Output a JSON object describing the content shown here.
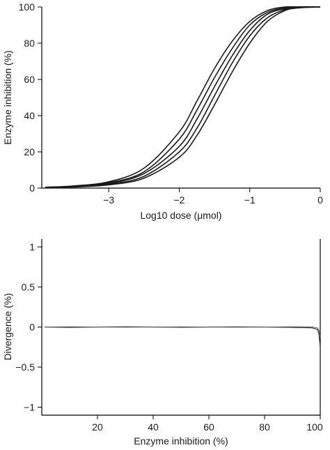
{
  "chart_data": [
    {
      "type": "line",
      "xlabel": "Log10 dose (μmol)",
      "ylabel": "Enzyme inhibition (%)",
      "xlim": [
        -3.95,
        0
      ],
      "ylim": [
        0,
        100
      ],
      "xticks": [
        -3,
        -2,
        -1,
        0
      ],
      "yticks": [
        0,
        20,
        40,
        60,
        80,
        100
      ],
      "grid": false,
      "x": [
        -3.9,
        -3.5,
        -3.0,
        -2.5,
        -2.0,
        -1.75,
        -1.5,
        -1.25,
        -1.0,
        -0.75,
        -0.5,
        -0.3,
        0
      ],
      "series": [
        {
          "values": [
            0.5,
            1.2,
            3.5,
            11,
            31,
            48,
            66,
            81,
            92,
            98,
            100,
            100,
            100
          ]
        },
        {
          "values": [
            0.4,
            1.0,
            3.0,
            9,
            27,
            43,
            61,
            77,
            90,
            97,
            99.5,
            100,
            100
          ]
        },
        {
          "values": [
            0.3,
            0.9,
            2.6,
            8,
            23,
            38,
            56,
            73,
            87,
            96,
            99,
            100,
            100
          ]
        },
        {
          "values": [
            0.3,
            0.8,
            2.2,
            6.5,
            20,
            33,
            51,
            69,
            84,
            94,
            98.5,
            100,
            100
          ]
        },
        {
          "values": [
            0.2,
            0.6,
            1.8,
            5.5,
            17,
            29,
            46,
            64,
            80,
            92,
            98,
            99.5,
            100
          ]
        }
      ]
    },
    {
      "type": "line",
      "xlabel": "Enzyme inhibition (%)",
      "ylabel": "Divergence (%)",
      "xlim": [
        0,
        100
      ],
      "ylim": [
        -1.1,
        1.1
      ],
      "xticks": [
        20,
        40,
        60,
        80,
        100
      ],
      "yticks": [
        -1,
        -0.5,
        0,
        0.5,
        1
      ],
      "ytick_labels": [
        "−1",
        "−0.5",
        "0",
        "0.5",
        "1"
      ],
      "grid": false,
      "x": [
        1,
        10,
        20,
        30,
        40,
        50,
        60,
        70,
        80,
        90,
        97,
        99,
        99.5,
        100
      ],
      "series": [
        {
          "values": [
            0,
            -0.005,
            0,
            0.003,
            0,
            -0.003,
            0,
            0.002,
            0,
            -0.005,
            -0.01,
            -0.03,
            -0.08,
            -0.25
          ]
        },
        {
          "values": [
            0,
            0.003,
            0,
            -0.002,
            0,
            0.002,
            0,
            -0.002,
            0,
            0.003,
            0.002,
            -0.01,
            -0.04,
            -0.12
          ]
        }
      ]
    }
  ],
  "top_chart_labels": {
    "xticks_text": [
      "−3",
      "−2",
      "−1",
      "0"
    ],
    "yticks_text": [
      "0",
      "20",
      "40",
      "60",
      "80",
      "100"
    ]
  },
  "bottom_chart_labels": {
    "xticks_text": [
      "20",
      "40",
      "60",
      "80",
      "100"
    ]
  }
}
